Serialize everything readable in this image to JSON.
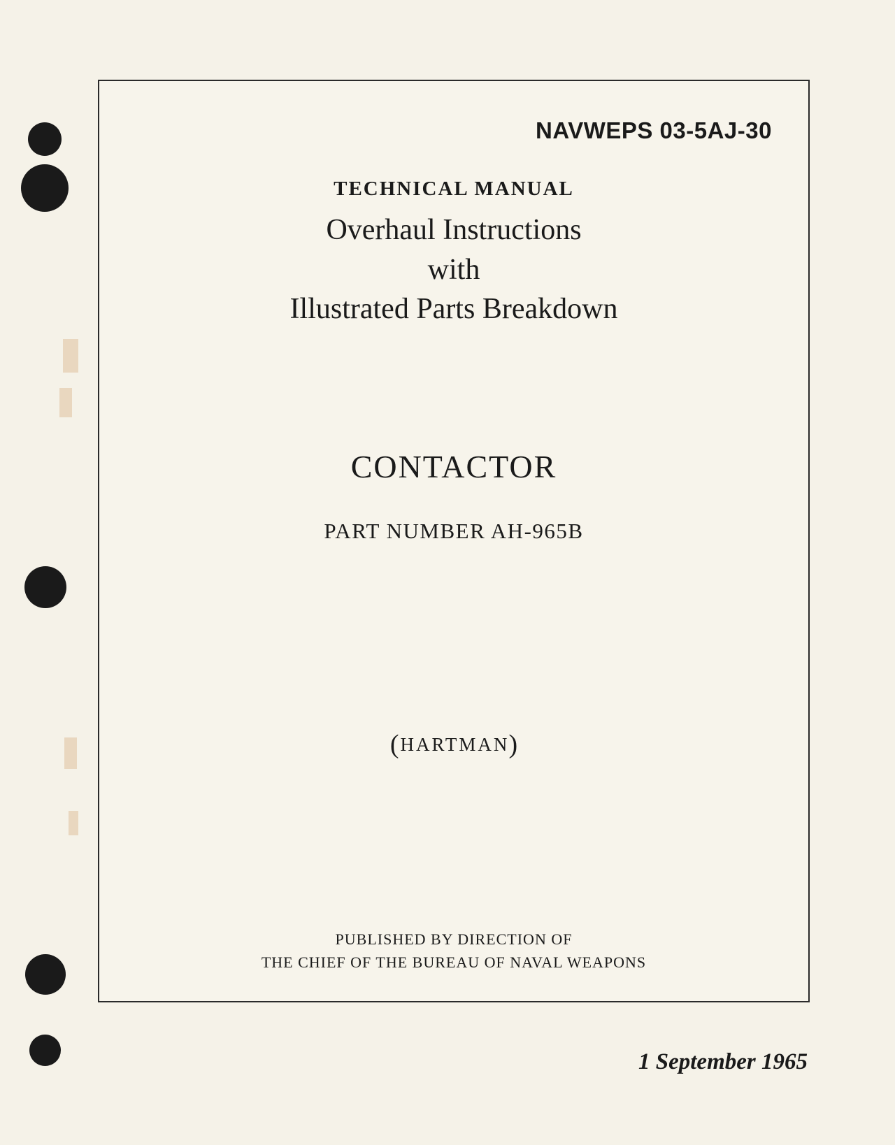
{
  "document": {
    "number": "NAVWEPS 03-5AJ-30",
    "type_label": "TECHNICAL MANUAL",
    "title_line1": "Overhaul Instructions",
    "title_line2": "with",
    "title_line3": "Illustrated Parts Breakdown",
    "subject": "CONTACTOR",
    "part_number": "PART NUMBER AH-965B",
    "manufacturer": "HARTMAN",
    "publisher_line1": "PUBLISHED BY DIRECTION OF",
    "publisher_line2": "THE CHIEF OF THE BUREAU OF NAVAL WEAPONS",
    "date": "1 September 1965"
  },
  "styling": {
    "page_bg": "#f5f2e8",
    "text_color": "#1a1a1a",
    "frame_border_color": "#2a2a2a",
    "frame_border_width": 2.5,
    "punch_hole_color": "#1a1a1a",
    "stain_color": "#d4a574",
    "doc_number_fontsize": 33,
    "tech_label_fontsize": 29,
    "title_fontsize": 42,
    "subject_fontsize": 46,
    "part_number_fontsize": 31,
    "manufacturer_fontsize": 27,
    "publisher_fontsize": 22,
    "date_fontsize": 33
  }
}
